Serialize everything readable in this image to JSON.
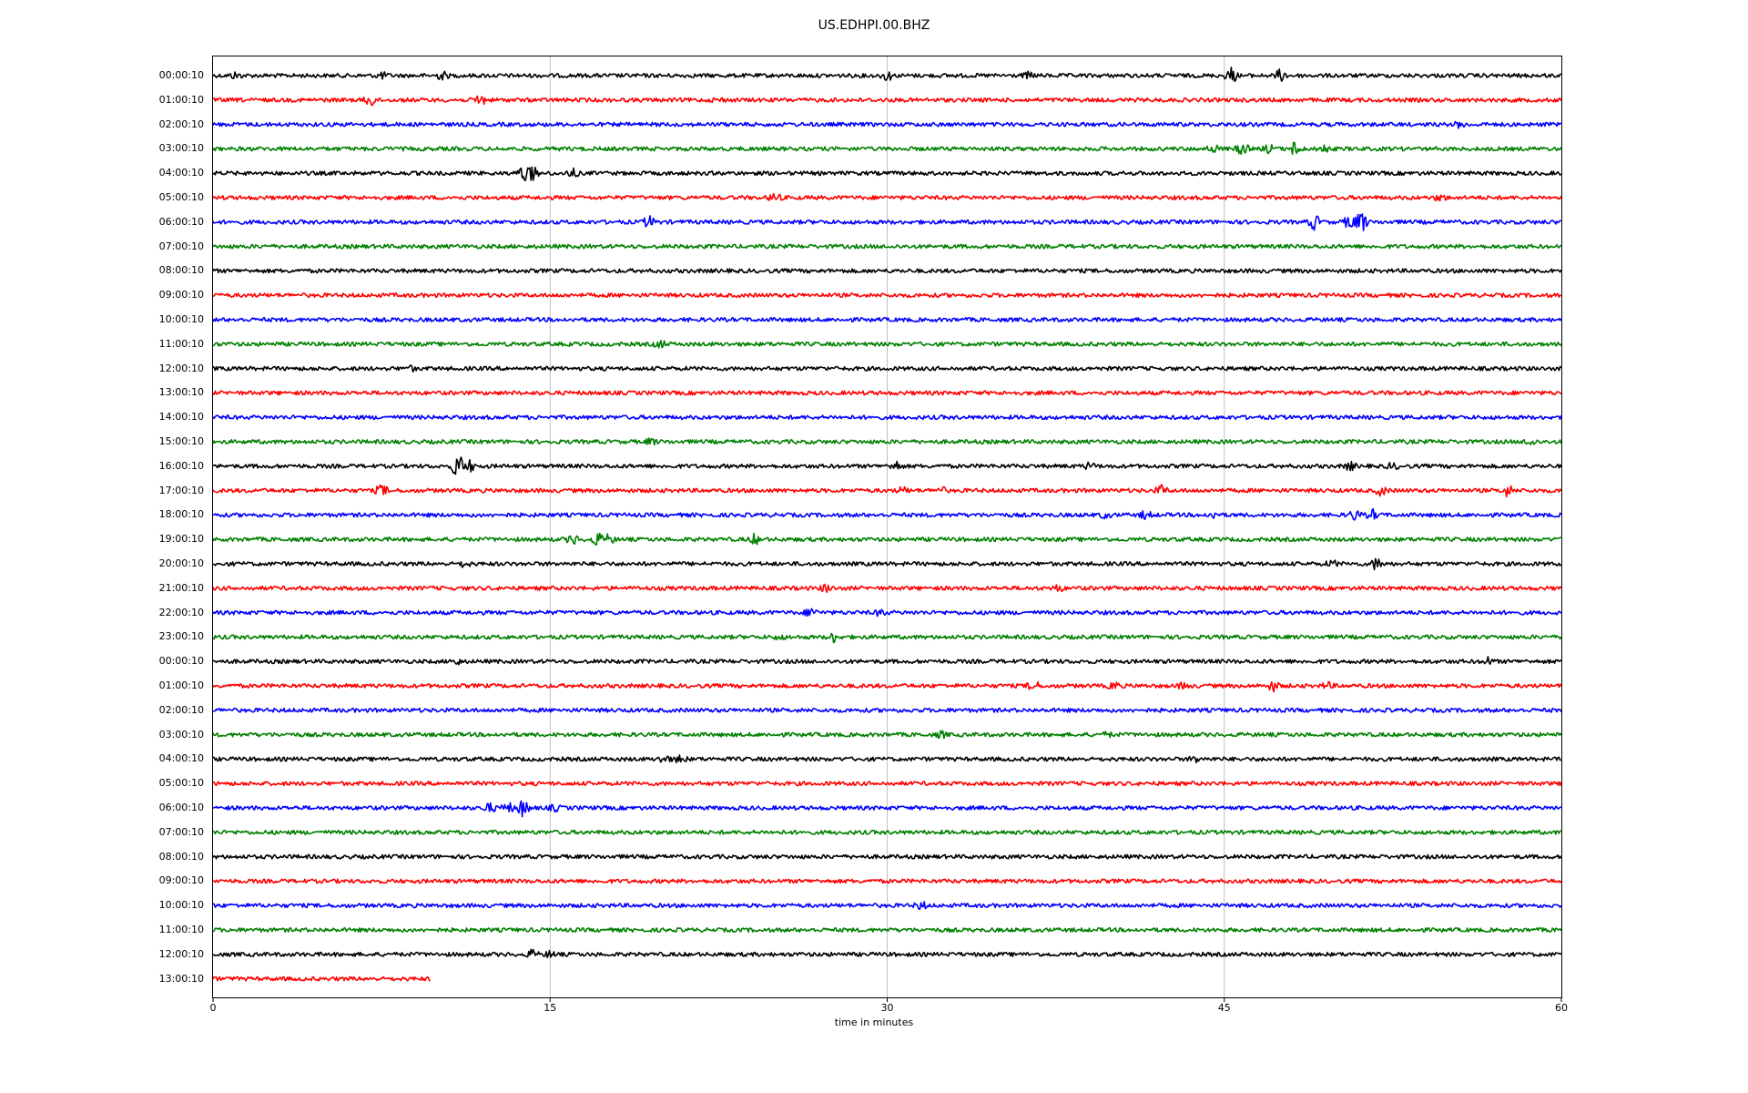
{
  "chart_data": {
    "type": "line",
    "title": "US.EDHPI.00.BHZ",
    "xlabel": "time in minutes",
    "ylabel": "",
    "xlim": [
      0,
      60
    ],
    "x_ticks": [
      "0",
      "15",
      "30",
      "45",
      "60"
    ],
    "vertical_grid": true,
    "trace_colors": [
      "#000000",
      "#ff0000",
      "#0000ff",
      "#008000"
    ],
    "rows": [
      {
        "label": "00:00:10",
        "end": 60,
        "events": [
          [
            1,
            3
          ],
          [
            7.5,
            3
          ],
          [
            10.2,
            4
          ],
          [
            30,
            5
          ],
          [
            36.3,
            3
          ],
          [
            45.3,
            8
          ],
          [
            47.5,
            6
          ]
        ]
      },
      {
        "label": "01:00:10",
        "end": 60,
        "events": [
          [
            7,
            7
          ],
          [
            11.9,
            6
          ],
          [
            22.5,
            2
          ]
        ]
      },
      {
        "label": "02:00:10",
        "end": 60,
        "events": [
          [
            55.5,
            3
          ]
        ]
      },
      {
        "label": "03:00:10",
        "end": 60,
        "events": [
          [
            44.5,
            4
          ],
          [
            45.8,
            7
          ],
          [
            47,
            4
          ],
          [
            48.2,
            9
          ],
          [
            49.4,
            4
          ]
        ]
      },
      {
        "label": "04:00:10",
        "end": 60,
        "events": [
          [
            13.8,
            9
          ],
          [
            14.2,
            8
          ],
          [
            16,
            4
          ]
        ]
      },
      {
        "label": "05:00:10",
        "end": 60,
        "events": [
          [
            25,
            5
          ],
          [
            54.6,
            3
          ]
        ]
      },
      {
        "label": "06:00:10",
        "end": 60,
        "events": [
          [
            19.4,
            6
          ],
          [
            49,
            8
          ],
          [
            50.6,
            8
          ],
          [
            51.1,
            12
          ]
        ]
      },
      {
        "label": "07:00:10",
        "end": 60,
        "events": []
      },
      {
        "label": "08:00:10",
        "end": 60,
        "events": []
      },
      {
        "label": "09:00:10",
        "end": 60,
        "events": []
      },
      {
        "label": "10:00:10",
        "end": 60,
        "events": []
      },
      {
        "label": "11:00:10",
        "end": 60,
        "events": [
          [
            19.9,
            4
          ]
        ]
      },
      {
        "label": "12:00:10",
        "end": 60,
        "events": [
          [
            8.8,
            2
          ]
        ]
      },
      {
        "label": "13:00:10",
        "end": 60,
        "events": []
      },
      {
        "label": "14:00:10",
        "end": 60,
        "events": []
      },
      {
        "label": "15:00:10",
        "end": 60,
        "events": [
          [
            19.5,
            3
          ],
          [
            58.6,
            4
          ]
        ]
      },
      {
        "label": "16:00:10",
        "end": 60,
        "events": [
          [
            10.9,
            14
          ],
          [
            11.4,
            6
          ],
          [
            30.4,
            5
          ],
          [
            39,
            3
          ],
          [
            50.6,
            4
          ],
          [
            52.5,
            3
          ]
        ]
      },
      {
        "label": "17:00:10",
        "end": 60,
        "events": [
          [
            7.5,
            6
          ],
          [
            30.7,
            3
          ],
          [
            32.4,
            3
          ],
          [
            42.2,
            5
          ],
          [
            52,
            5
          ],
          [
            57.6,
            6
          ]
        ]
      },
      {
        "label": "18:00:10",
        "end": 60,
        "events": [
          [
            39.7,
            3
          ],
          [
            41.5,
            4
          ],
          [
            44.5,
            3
          ],
          [
            50.8,
            5
          ],
          [
            51.6,
            5
          ]
        ]
      },
      {
        "label": "19:00:10",
        "end": 60,
        "events": [
          [
            16,
            5
          ],
          [
            17.1,
            7
          ],
          [
            17.6,
            5
          ],
          [
            24.1,
            5
          ]
        ]
      },
      {
        "label": "20:00:10",
        "end": 60,
        "events": [
          [
            11.2,
            3
          ],
          [
            49.8,
            3
          ],
          [
            51.8,
            7
          ]
        ]
      },
      {
        "label": "21:00:10",
        "end": 60,
        "events": [
          [
            27.3,
            4
          ],
          [
            37.6,
            3
          ]
        ]
      },
      {
        "label": "22:00:10",
        "end": 60,
        "events": [
          [
            26.6,
            5
          ],
          [
            29.7,
            3
          ]
        ]
      },
      {
        "label": "23:00:10",
        "end": 60,
        "events": [
          [
            27.6,
            5
          ],
          [
            25.2,
            2
          ]
        ]
      },
      {
        "label": "00:00:10",
        "end": 60,
        "events": [
          [
            10.8,
            3
          ],
          [
            56.7,
            4
          ]
        ]
      },
      {
        "label": "01:00:10",
        "end": 60,
        "events": [
          [
            36.5,
            6
          ],
          [
            40.1,
            4
          ],
          [
            43.2,
            3
          ],
          [
            47.2,
            5
          ],
          [
            49.6,
            3
          ]
        ]
      },
      {
        "label": "02:00:10",
        "end": 60,
        "events": []
      },
      {
        "label": "03:00:10",
        "end": 60,
        "events": [
          [
            32.4,
            3
          ],
          [
            39.8,
            2
          ]
        ]
      },
      {
        "label": "04:00:10",
        "end": 60,
        "events": [
          [
            20.1,
            4
          ],
          [
            20.8,
            4
          ],
          [
            43.7,
            3
          ]
        ]
      },
      {
        "label": "05:00:10",
        "end": 60,
        "events": []
      },
      {
        "label": "06:00:10",
        "end": 60,
        "events": [
          [
            12.3,
            5
          ],
          [
            13.1,
            6
          ],
          [
            13.8,
            10
          ],
          [
            15.2,
            3
          ]
        ]
      },
      {
        "label": "07:00:10",
        "end": 60,
        "events": []
      },
      {
        "label": "08:00:10",
        "end": 60,
        "events": []
      },
      {
        "label": "09:00:10",
        "end": 60,
        "events": []
      },
      {
        "label": "10:00:10",
        "end": 60,
        "events": [
          [
            31.5,
            4
          ]
        ]
      },
      {
        "label": "11:00:10",
        "end": 60,
        "events": []
      },
      {
        "label": "12:00:10",
        "end": 60,
        "events": [
          [
            14.2,
            4
          ],
          [
            15,
            3
          ]
        ]
      },
      {
        "label": "13:00:10",
        "end": 9.7,
        "events": []
      }
    ]
  }
}
